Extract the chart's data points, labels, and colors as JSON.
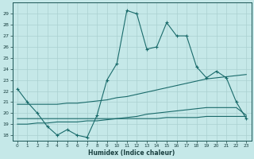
{
  "xlabel": "Humidex (Indice chaleur)",
  "ylabel": "",
  "xlim": [
    -0.5,
    23.5
  ],
  "ylim": [
    17.5,
    30.0
  ],
  "yticks": [
    18,
    19,
    20,
    21,
    22,
    23,
    24,
    25,
    26,
    27,
    28,
    29
  ],
  "xticks": [
    0,
    1,
    2,
    3,
    4,
    5,
    6,
    7,
    8,
    9,
    10,
    11,
    12,
    13,
    14,
    15,
    16,
    17,
    18,
    19,
    20,
    21,
    22,
    23
  ],
  "bg_color": "#c5e8e8",
  "grid_color": "#aad0d0",
  "line_color": "#1a6b6b",
  "line1_x": [
    0,
    1,
    2,
    3,
    4,
    5,
    6,
    7,
    8,
    9,
    10,
    11,
    12,
    13,
    14,
    15,
    16,
    17,
    18,
    19,
    20,
    21,
    22,
    23
  ],
  "line1_y": [
    22.2,
    21.0,
    20.0,
    18.8,
    18.0,
    18.5,
    18.0,
    17.8,
    19.8,
    23.0,
    24.5,
    29.3,
    29.0,
    25.8,
    26.0,
    28.2,
    27.0,
    27.0,
    24.2,
    23.2,
    23.8,
    23.2,
    21.0,
    19.5
  ],
  "line2_x": [
    0,
    1,
    2,
    3,
    4,
    5,
    6,
    7,
    8,
    9,
    10,
    11,
    12,
    13,
    14,
    15,
    16,
    17,
    18,
    19,
    20,
    21,
    22,
    23
  ],
  "line2_y": [
    20.8,
    20.8,
    20.8,
    20.8,
    20.8,
    20.9,
    20.9,
    21.0,
    21.1,
    21.2,
    21.4,
    21.5,
    21.7,
    21.9,
    22.1,
    22.3,
    22.5,
    22.7,
    22.9,
    23.1,
    23.2,
    23.3,
    23.4,
    23.5
  ],
  "line3_x": [
    0,
    1,
    2,
    3,
    4,
    5,
    6,
    7,
    8,
    9,
    10,
    11,
    12,
    13,
    14,
    15,
    16,
    17,
    18,
    19,
    20,
    21,
    22,
    23
  ],
  "line3_y": [
    19.0,
    19.0,
    19.1,
    19.1,
    19.2,
    19.2,
    19.2,
    19.3,
    19.3,
    19.4,
    19.5,
    19.6,
    19.7,
    19.9,
    20.0,
    20.1,
    20.2,
    20.3,
    20.4,
    20.5,
    20.5,
    20.5,
    20.5,
    19.8
  ],
  "line4_x": [
    0,
    1,
    2,
    3,
    4,
    5,
    6,
    7,
    8,
    9,
    10,
    11,
    12,
    13,
    14,
    15,
    16,
    17,
    18,
    19,
    20,
    21,
    22,
    23
  ],
  "line4_y": [
    19.5,
    19.5,
    19.5,
    19.5,
    19.5,
    19.5,
    19.5,
    19.5,
    19.5,
    19.5,
    19.5,
    19.5,
    19.5,
    19.5,
    19.5,
    19.6,
    19.6,
    19.6,
    19.6,
    19.7,
    19.7,
    19.7,
    19.7,
    19.7
  ]
}
